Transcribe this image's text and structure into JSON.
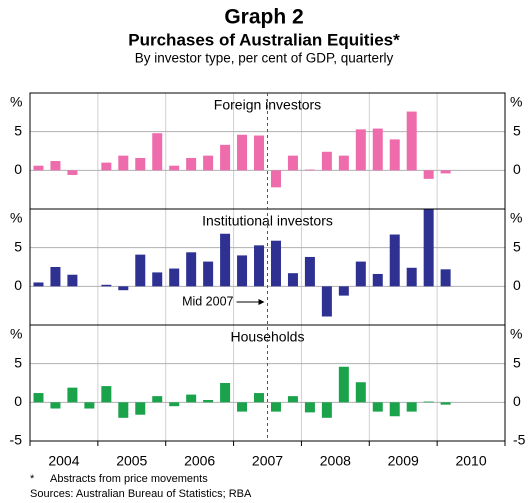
{
  "chart_data": {
    "type": "bar",
    "title": "Graph 2",
    "subtitle": "Purchases of Australian Equities*",
    "description": "By investor type, per cent of GDP, quarterly",
    "y_unit": "%",
    "categories": [
      "2004",
      "2005",
      "2006",
      "2007",
      "2008",
      "2009",
      "2010"
    ],
    "annotation": "Mid 2007",
    "footnote": "Abstracts from price movements",
    "footnote_marker": "*",
    "source": "Sources: Australian Bureau of Statistics; RBA",
    "grid": true,
    "panels": [
      {
        "title": "Foreign investors",
        "color": "#ee6bac",
        "ylim": [
          -5,
          10
        ],
        "yticks": [
          0,
          5
        ],
        "values": [
          0.6,
          1.2,
          -0.6,
          0,
          1.0,
          1.9,
          1.6,
          4.8,
          0.6,
          1.6,
          1.9,
          3.3,
          4.6,
          4.5,
          -2.2,
          1.9,
          0.1,
          2.4,
          1.9,
          5.3,
          5.4,
          4.0,
          7.6,
          -1.1,
          -0.4
        ]
      },
      {
        "title": "Institutional investors",
        "color": "#2e3192",
        "ylim": [
          -5,
          10
        ],
        "yticks": [
          0,
          5
        ],
        "values": [
          0.5,
          2.5,
          1.5,
          0,
          0.2,
          -0.5,
          4.1,
          1.8,
          2.3,
          4.4,
          3.2,
          6.8,
          4.0,
          5.3,
          5.9,
          1.7,
          3.8,
          -3.9,
          -1.2,
          3.2,
          1.6,
          6.7,
          2.4,
          10,
          2.2
        ]
      },
      {
        "title": "Households",
        "color": "#1aa34a",
        "ylim": [
          -5,
          10
        ],
        "yticks": [
          -5,
          0,
          5
        ],
        "values": [
          1.2,
          -0.8,
          1.9,
          -0.8,
          2.1,
          -2.0,
          -1.6,
          0.8,
          -0.5,
          1.0,
          0.3,
          2.5,
          -1.2,
          1.2,
          -1.2,
          0.8,
          -1.3,
          -2.0,
          4.6,
          2.6,
          -1.2,
          -1.8,
          -1.2,
          0.1,
          -0.3
        ]
      }
    ]
  }
}
